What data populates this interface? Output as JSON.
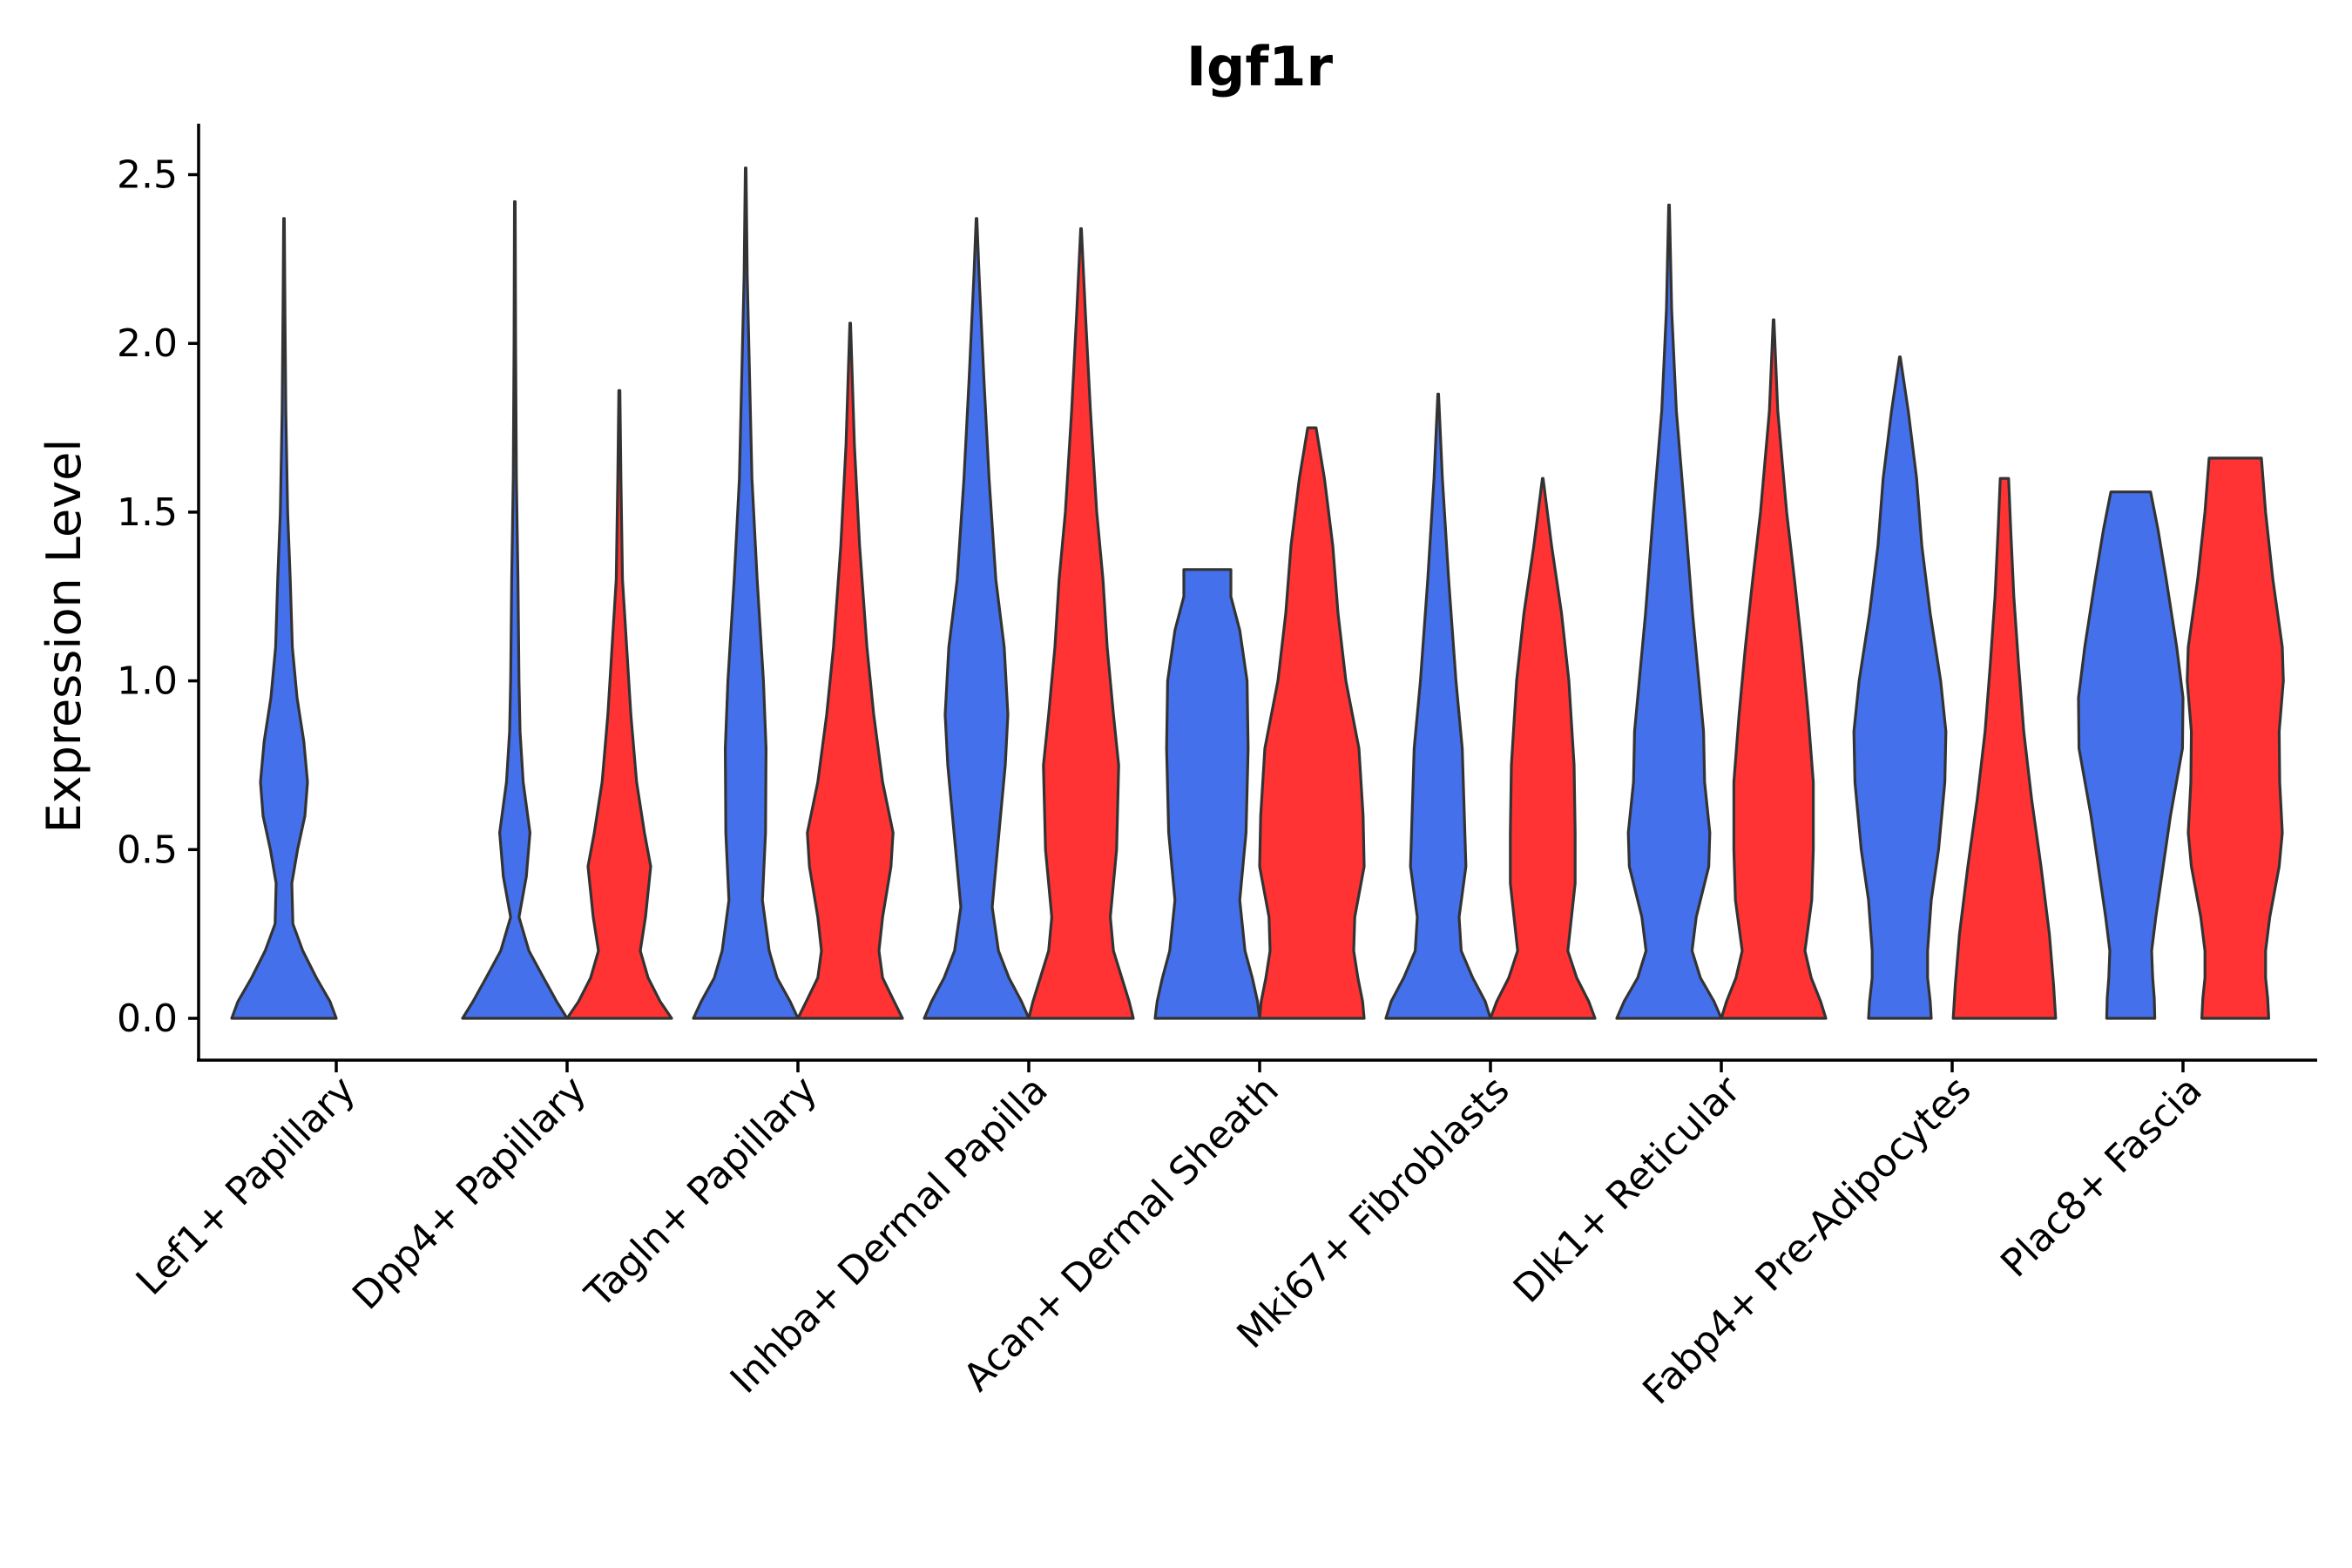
{
  "chart_data": {
    "type": "violin",
    "title": "Igf1r",
    "xlabel": "",
    "ylabel": "Expression Level",
    "ylim": [
      -0.13,
      2.65
    ],
    "yticks": [
      0.0,
      0.5,
      1.0,
      1.5,
      2.0,
      2.5
    ],
    "ytick_labels": [
      "0.0",
      "0.5",
      "1.0",
      "1.5",
      "2.0",
      "2.5"
    ],
    "grid": false,
    "legend": "none",
    "series": [
      {
        "name": "group-blue",
        "color": "#4570EB"
      },
      {
        "name": "group-red",
        "color": "#FF3333"
      }
    ],
    "categories": [
      "Lef1+ Papillary",
      "Dpp4+ Papillary",
      "Tagln+ Papillary",
      "Inhba+ Dermal Papilla",
      "Acan+ Dermal Sheath",
      "Mki67+ Fibroblasts",
      "Dlk1+ Reticular",
      "Fabp4+ Pre-Adipocytes",
      "Plac8+ Fascia"
    ],
    "violins": [
      {
        "category": "Lef1+ Papillary",
        "series": "group-blue",
        "max": 2.37,
        "profile": [
          [
            0,
            1
          ],
          [
            0.05,
            0.88
          ],
          [
            0.12,
            0.62
          ],
          [
            0.2,
            0.36
          ],
          [
            0.28,
            0.17
          ],
          [
            0.4,
            0.15
          ],
          [
            0.5,
            0.26
          ],
          [
            0.6,
            0.4
          ],
          [
            0.7,
            0.45
          ],
          [
            0.82,
            0.38
          ],
          [
            0.95,
            0.25
          ],
          [
            1.1,
            0.16
          ],
          [
            1.3,
            0.12
          ],
          [
            1.5,
            0.07
          ],
          [
            1.8,
            0.035
          ],
          [
            2.1,
            0.018
          ],
          [
            2.37,
            0.006
          ]
        ]
      },
      {
        "category": "Dpp4+ Papillary",
        "series": "group-blue",
        "max": 2.42,
        "profile": [
          [
            0,
            1
          ],
          [
            0.05,
            0.8
          ],
          [
            0.12,
            0.55
          ],
          [
            0.2,
            0.27
          ],
          [
            0.3,
            0.08
          ],
          [
            0.42,
            0.22
          ],
          [
            0.55,
            0.29
          ],
          [
            0.7,
            0.16
          ],
          [
            0.85,
            0.1
          ],
          [
            1.0,
            0.08
          ],
          [
            1.3,
            0.06
          ],
          [
            1.6,
            0.03
          ],
          [
            2.0,
            0.015
          ],
          [
            2.42,
            0.006
          ]
        ]
      },
      {
        "category": "Dpp4+ Papillary",
        "series": "group-red",
        "max": 1.86,
        "profile": [
          [
            0,
            1
          ],
          [
            0.05,
            0.78
          ],
          [
            0.12,
            0.55
          ],
          [
            0.2,
            0.4
          ],
          [
            0.3,
            0.5
          ],
          [
            0.45,
            0.6
          ],
          [
            0.55,
            0.48
          ],
          [
            0.7,
            0.33
          ],
          [
            0.9,
            0.22
          ],
          [
            1.1,
            0.14
          ],
          [
            1.3,
            0.06
          ],
          [
            1.6,
            0.03
          ],
          [
            1.86,
            0.01
          ]
        ]
      },
      {
        "category": "Tagln+ Papillary",
        "series": "group-blue",
        "max": 2.52,
        "profile": [
          [
            0,
            1
          ],
          [
            0.05,
            0.85
          ],
          [
            0.12,
            0.6
          ],
          [
            0.2,
            0.45
          ],
          [
            0.35,
            0.32
          ],
          [
            0.55,
            0.38
          ],
          [
            0.8,
            0.39
          ],
          [
            1.0,
            0.34
          ],
          [
            1.3,
            0.22
          ],
          [
            1.6,
            0.12
          ],
          [
            2.0,
            0.06
          ],
          [
            2.2,
            0.03
          ],
          [
            2.52,
            0.006
          ]
        ]
      },
      {
        "category": "Tagln+ Papillary",
        "series": "group-red",
        "max": 2.06,
        "profile": [
          [
            0,
            1
          ],
          [
            0.05,
            0.84
          ],
          [
            0.12,
            0.62
          ],
          [
            0.2,
            0.55
          ],
          [
            0.3,
            0.62
          ],
          [
            0.45,
            0.78
          ],
          [
            0.55,
            0.82
          ],
          [
            0.7,
            0.62
          ],
          [
            0.9,
            0.45
          ],
          [
            1.1,
            0.32
          ],
          [
            1.4,
            0.18
          ],
          [
            1.7,
            0.08
          ],
          [
            2.06,
            0.006
          ]
        ]
      },
      {
        "category": "Inhba+ Dermal Papilla",
        "series": "group-blue",
        "max": 2.37,
        "profile": [
          [
            0,
            1
          ],
          [
            0.05,
            0.86
          ],
          [
            0.12,
            0.62
          ],
          [
            0.2,
            0.42
          ],
          [
            0.33,
            0.3
          ],
          [
            0.5,
            0.4
          ],
          [
            0.75,
            0.55
          ],
          [
            0.9,
            0.6
          ],
          [
            1.1,
            0.53
          ],
          [
            1.3,
            0.37
          ],
          [
            1.6,
            0.24
          ],
          [
            1.9,
            0.14
          ],
          [
            2.2,
            0.05
          ],
          [
            2.37,
            0.006
          ]
        ]
      },
      {
        "category": "Inhba+ Dermal Papilla",
        "series": "group-red",
        "max": 2.34,
        "profile": [
          [
            0,
            1
          ],
          [
            0.05,
            0.92
          ],
          [
            0.12,
            0.78
          ],
          [
            0.2,
            0.62
          ],
          [
            0.3,
            0.56
          ],
          [
            0.5,
            0.68
          ],
          [
            0.75,
            0.72
          ],
          [
            0.9,
            0.62
          ],
          [
            1.1,
            0.5
          ],
          [
            1.3,
            0.42
          ],
          [
            1.5,
            0.3
          ],
          [
            1.8,
            0.18
          ],
          [
            2.1,
            0.08
          ],
          [
            2.34,
            0.006
          ]
        ]
      },
      {
        "category": "Acan+ Dermal Sheath",
        "series": "group-blue",
        "max": 1.33,
        "profile": [
          [
            0,
            1
          ],
          [
            0.05,
            0.96
          ],
          [
            0.12,
            0.86
          ],
          [
            0.2,
            0.72
          ],
          [
            0.35,
            0.62
          ],
          [
            0.55,
            0.74
          ],
          [
            0.8,
            0.78
          ],
          [
            1.0,
            0.76
          ],
          [
            1.15,
            0.62
          ],
          [
            1.25,
            0.45
          ],
          [
            1.33,
            0.45
          ]
        ]
      },
      {
        "category": "Acan+ Dermal Sheath",
        "series": "group-red",
        "max": 1.75,
        "profile": [
          [
            0,
            1
          ],
          [
            0.05,
            0.97
          ],
          [
            0.12,
            0.88
          ],
          [
            0.2,
            0.8
          ],
          [
            0.3,
            0.82
          ],
          [
            0.45,
            1.0
          ],
          [
            0.6,
            0.98
          ],
          [
            0.8,
            0.9
          ],
          [
            1.0,
            0.65
          ],
          [
            1.2,
            0.5
          ],
          [
            1.4,
            0.4
          ],
          [
            1.6,
            0.24
          ],
          [
            1.75,
            0.08
          ]
        ]
      },
      {
        "category": "Mki67+ Fibroblasts",
        "series": "group-blue",
        "max": 1.85,
        "profile": [
          [
            0,
            1
          ],
          [
            0.05,
            0.9
          ],
          [
            0.12,
            0.66
          ],
          [
            0.2,
            0.44
          ],
          [
            0.3,
            0.4
          ],
          [
            0.45,
            0.53
          ],
          [
            0.6,
            0.5
          ],
          [
            0.8,
            0.46
          ],
          [
            1.0,
            0.34
          ],
          [
            1.3,
            0.2
          ],
          [
            1.6,
            0.08
          ],
          [
            1.85,
            0.006
          ]
        ]
      },
      {
        "category": "Mki67+ Fibroblasts",
        "series": "group-red",
        "max": 1.6,
        "profile": [
          [
            0,
            1
          ],
          [
            0.05,
            0.88
          ],
          [
            0.12,
            0.65
          ],
          [
            0.2,
            0.48
          ],
          [
            0.3,
            0.55
          ],
          [
            0.4,
            0.62
          ],
          [
            0.55,
            0.62
          ],
          [
            0.75,
            0.6
          ],
          [
            1.0,
            0.5
          ],
          [
            1.2,
            0.36
          ],
          [
            1.4,
            0.17
          ],
          [
            1.6,
            0.006
          ]
        ]
      },
      {
        "category": "Dlk1+ Reticular",
        "series": "group-blue",
        "max": 2.41,
        "profile": [
          [
            0,
            1
          ],
          [
            0.05,
            0.86
          ],
          [
            0.12,
            0.6
          ],
          [
            0.2,
            0.44
          ],
          [
            0.3,
            0.52
          ],
          [
            0.45,
            0.76
          ],
          [
            0.55,
            0.78
          ],
          [
            0.7,
            0.68
          ],
          [
            0.85,
            0.66
          ],
          [
            1.0,
            0.57
          ],
          [
            1.2,
            0.45
          ],
          [
            1.5,
            0.3
          ],
          [
            1.8,
            0.14
          ],
          [
            2.1,
            0.05
          ],
          [
            2.41,
            0.006
          ]
        ]
      },
      {
        "category": "Dlk1+ Reticular",
        "series": "group-red",
        "max": 2.07,
        "profile": [
          [
            0,
            1
          ],
          [
            0.05,
            0.9
          ],
          [
            0.12,
            0.72
          ],
          [
            0.2,
            0.6
          ],
          [
            0.35,
            0.73
          ],
          [
            0.5,
            0.76
          ],
          [
            0.7,
            0.76
          ],
          [
            0.9,
            0.66
          ],
          [
            1.1,
            0.54
          ],
          [
            1.3,
            0.4
          ],
          [
            1.5,
            0.25
          ],
          [
            1.8,
            0.08
          ],
          [
            2.07,
            0.006
          ]
        ]
      },
      {
        "category": "Fabp4+ Pre-Adipocytes",
        "series": "group-blue",
        "max": 1.96,
        "profile": [
          [
            0,
            0.6
          ],
          [
            0.05,
            0.58
          ],
          [
            0.12,
            0.53
          ],
          [
            0.2,
            0.53
          ],
          [
            0.35,
            0.6
          ],
          [
            0.5,
            0.74
          ],
          [
            0.7,
            0.86
          ],
          [
            0.85,
            0.88
          ],
          [
            1.0,
            0.78
          ],
          [
            1.2,
            0.58
          ],
          [
            1.4,
            0.42
          ],
          [
            1.6,
            0.32
          ],
          [
            1.8,
            0.16
          ],
          [
            1.96,
            0.006
          ]
        ]
      },
      {
        "category": "Fabp4+ Pre-Adipocytes",
        "series": "group-red",
        "max": 1.6,
        "profile": [
          [
            0,
            0.98
          ],
          [
            0.1,
            0.94
          ],
          [
            0.25,
            0.86
          ],
          [
            0.45,
            0.7
          ],
          [
            0.65,
            0.52
          ],
          [
            0.85,
            0.37
          ],
          [
            1.05,
            0.27
          ],
          [
            1.25,
            0.18
          ],
          [
            1.45,
            0.12
          ],
          [
            1.6,
            0.08
          ]
        ]
      },
      {
        "category": "Plac8+ Fascia",
        "series": "group-blue",
        "max": 1.56,
        "profile": [
          [
            0,
            0.46
          ],
          [
            0.06,
            0.45
          ],
          [
            0.12,
            0.42
          ],
          [
            0.2,
            0.4
          ],
          [
            0.3,
            0.48
          ],
          [
            0.45,
            0.62
          ],
          [
            0.6,
            0.76
          ],
          [
            0.8,
            0.99
          ],
          [
            0.95,
            1.0
          ],
          [
            1.1,
            0.88
          ],
          [
            1.3,
            0.68
          ],
          [
            1.45,
            0.52
          ],
          [
            1.56,
            0.38
          ]
        ]
      },
      {
        "category": "Plac8+ Fascia",
        "series": "group-red",
        "max": 1.66,
        "profile": [
          [
            0,
            0.64
          ],
          [
            0.06,
            0.62
          ],
          [
            0.12,
            0.58
          ],
          [
            0.2,
            0.58
          ],
          [
            0.3,
            0.66
          ],
          [
            0.45,
            0.84
          ],
          [
            0.55,
            0.9
          ],
          [
            0.7,
            0.85
          ],
          [
            0.85,
            0.84
          ],
          [
            1.0,
            0.92
          ],
          [
            1.1,
            0.9
          ],
          [
            1.3,
            0.72
          ],
          [
            1.5,
            0.58
          ],
          [
            1.66,
            0.5
          ]
        ]
      }
    ]
  }
}
